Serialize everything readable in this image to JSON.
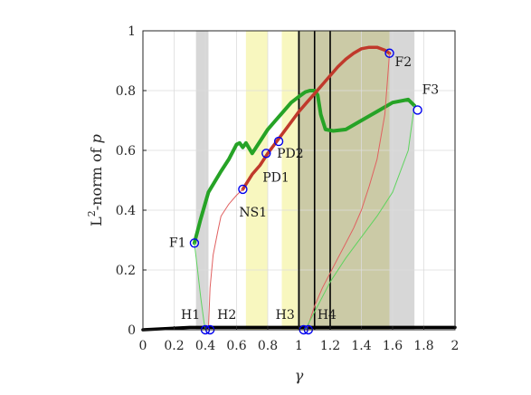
{
  "chart_data": {
    "type": "line",
    "xlabel": "γ",
    "ylabel_main": "L",
    "ylabel_sup": "2",
    "ylabel_rest": "-norm of ",
    "ylabel_var": "p",
    "xlim": [
      0,
      2
    ],
    "ylim": [
      0,
      1
    ],
    "grid": true,
    "xticks": [
      0,
      0.2,
      0.4,
      0.6,
      0.8,
      1,
      1.2,
      1.4,
      1.6,
      1.8,
      2
    ],
    "xtick_labels": [
      "0",
      "0.2",
      "0.4",
      "0.6",
      "0.8",
      "1",
      "1.2",
      "1.4",
      "1.6",
      "1.8",
      "2"
    ],
    "yticks": [
      0,
      0.2,
      0.4,
      0.6,
      0.8,
      1
    ],
    "ytick_labels": [
      "0",
      "0.2",
      "0.4",
      "0.6",
      "0.8",
      "1"
    ],
    "shaded_regions": [
      {
        "from": 0.34,
        "to": 0.42,
        "color": "#bdbdbd",
        "opacity": 0.6
      },
      {
        "from": 0.66,
        "to": 0.8,
        "color": "#f3f08a",
        "opacity": 0.55
      },
      {
        "from": 0.89,
        "to": 0.99,
        "color": "#f3f08a",
        "opacity": 0.55
      },
      {
        "from": 0.99,
        "to": 1.58,
        "color": "#a8a66a",
        "opacity": 0.6
      },
      {
        "from": 1.58,
        "to": 1.74,
        "color": "#bdbdbd",
        "opacity": 0.6
      }
    ],
    "vertical_lines": [
      1.0,
      1.1,
      1.2
    ],
    "series": [
      {
        "color": "#000000",
        "width": 3.5,
        "x": [
          0,
          0.3,
          0.4,
          1.0,
          1.5,
          2.0
        ],
        "y": [
          0,
          0.008,
          0.008,
          0.008,
          0.008,
          0.008
        ]
      },
      {
        "color": "#26a326",
        "width": 4,
        "x": [
          0.33,
          0.37,
          0.42,
          0.5,
          0.55,
          0.6,
          0.62,
          0.64,
          0.66,
          0.7,
          0.75,
          0.8,
          0.85,
          0.9,
          0.95,
          1.0,
          1.04,
          1.07,
          1.1,
          1.12,
          1.14,
          1.17,
          1.22,
          1.3,
          1.4,
          1.5,
          1.6,
          1.7,
          1.74
        ],
        "y": [
          0.29,
          0.37,
          0.46,
          0.53,
          0.57,
          0.62,
          0.625,
          0.61,
          0.625,
          0.59,
          0.63,
          0.67,
          0.7,
          0.73,
          0.76,
          0.78,
          0.795,
          0.8,
          0.8,
          0.785,
          0.72,
          0.67,
          0.665,
          0.67,
          0.7,
          0.73,
          0.76,
          0.77,
          0.75
        ]
      },
      {
        "color": "#c0392b",
        "width": 3.5,
        "x": [
          0.64,
          0.7,
          0.75,
          0.8,
          0.85,
          0.9,
          0.95,
          1.0,
          1.05,
          1.1,
          1.15,
          1.2,
          1.25,
          1.3,
          1.35,
          1.4,
          1.45,
          1.5,
          1.55,
          1.58
        ],
        "y": [
          0.47,
          0.52,
          0.55,
          0.59,
          0.625,
          0.66,
          0.695,
          0.73,
          0.76,
          0.79,
          0.82,
          0.85,
          0.88,
          0.905,
          0.925,
          0.94,
          0.945,
          0.945,
          0.935,
          0.925
        ]
      },
      {
        "color": "#e06060",
        "width": 1,
        "x": [
          0.42,
          0.43,
          0.45,
          0.48,
          0.5,
          0.55,
          0.6,
          0.64
        ],
        "y": [
          0.0,
          0.14,
          0.25,
          0.33,
          0.38,
          0.42,
          0.45,
          0.47
        ]
      },
      {
        "color": "#e06060",
        "width": 1,
        "x": [
          1.05,
          1.1,
          1.15,
          1.2,
          1.25,
          1.3,
          1.35,
          1.4,
          1.45,
          1.5,
          1.55,
          1.58
        ],
        "y": [
          0.0,
          0.08,
          0.14,
          0.19,
          0.24,
          0.29,
          0.34,
          0.4,
          0.48,
          0.57,
          0.72,
          0.925
        ]
      },
      {
        "color": "#5fd35f",
        "width": 1,
        "x": [
          0.33,
          0.35,
          0.37,
          0.39,
          0.4
        ],
        "y": [
          0.29,
          0.2,
          0.11,
          0.03,
          0.0
        ]
      },
      {
        "color": "#5fd35f",
        "width": 1,
        "x": [
          1.04,
          1.1,
          1.2,
          1.3,
          1.4,
          1.5,
          1.6,
          1.7,
          1.74
        ],
        "y": [
          0.0,
          0.06,
          0.16,
          0.24,
          0.31,
          0.38,
          0.46,
          0.6,
          0.75
        ]
      }
    ],
    "markers": [
      {
        "label": "F1",
        "x": 0.33,
        "y": 0.29,
        "label_dx": -28,
        "label_dy": 4
      },
      {
        "label": "NS1",
        "x": 0.64,
        "y": 0.47,
        "label_dx": -4,
        "label_dy": 30
      },
      {
        "label": "PD1",
        "x": 0.79,
        "y": 0.59,
        "label_dx": -4,
        "label_dy": 31
      },
      {
        "label": "PD2",
        "x": 0.87,
        "y": 0.63,
        "label_dx": -2,
        "label_dy": 18
      },
      {
        "label": "F2",
        "x": 1.58,
        "y": 0.925,
        "label_dx": 6,
        "label_dy": 14
      },
      {
        "label": "F3",
        "x": 1.76,
        "y": 0.735,
        "label_dx": 5,
        "label_dy": -18
      },
      {
        "label": "H1",
        "x": 0.4,
        "y": 0.0,
        "label_dx": -27,
        "label_dy": -12
      },
      {
        "label": "H2",
        "x": 0.43,
        "y": 0.0,
        "label_dx": 8,
        "label_dy": -12
      },
      {
        "label": "H3",
        "x": 1.03,
        "y": 0.0,
        "label_dx": -31,
        "label_dy": -12
      },
      {
        "label": "H4",
        "x": 1.06,
        "y": 0.0,
        "label_dx": 10,
        "label_dy": -12
      }
    ]
  }
}
